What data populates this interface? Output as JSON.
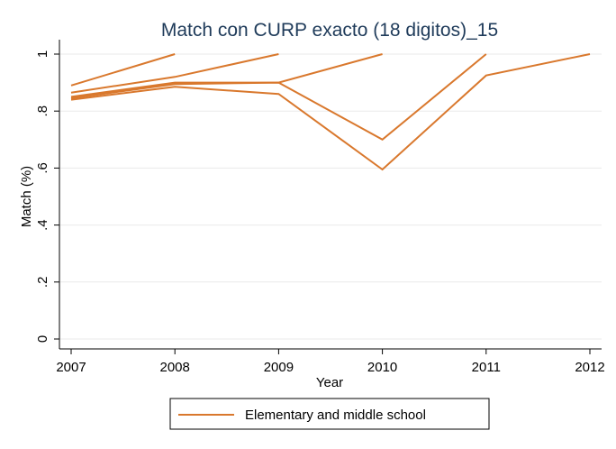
{
  "chart_data": {
    "type": "line",
    "title": "Match con CURP exacto (18 digitos)_15",
    "xlabel": "Year",
    "ylabel": "Match (%)",
    "x_ticks": [
      "2007",
      "2008",
      "2009",
      "2010",
      "2011",
      "2012"
    ],
    "y_ticks": [
      "0",
      ".2",
      ".4",
      ".6",
      ".8",
      "1"
    ],
    "xlim": [
      2007,
      2012
    ],
    "ylim": [
      0,
      1
    ],
    "grid": true,
    "legend_position": "bottom",
    "legend": [
      "Elementary and middle school"
    ],
    "series": [
      {
        "name": "Elementary and middle school",
        "x": [
          2007,
          2008
        ],
        "y": [
          0.89,
          1.0
        ]
      },
      {
        "x": [
          2007,
          2008,
          2009
        ],
        "y": [
          0.865,
          0.92,
          1.0
        ]
      },
      {
        "x": [
          2007,
          2008,
          2009,
          2010
        ],
        "y": [
          0.85,
          0.9,
          0.9,
          1.0
        ]
      },
      {
        "x": [
          2007,
          2008,
          2009,
          2010,
          2011
        ],
        "y": [
          0.845,
          0.895,
          0.9,
          0.7,
          1.0
        ]
      },
      {
        "x": [
          2007,
          2008,
          2009,
          2010,
          2011,
          2012
        ],
        "y": [
          0.84,
          0.885,
          0.86,
          0.595,
          0.925,
          1.0
        ]
      }
    ],
    "colors": {
      "line": "#d9782d",
      "title": "#1f3b5a",
      "grid": "#eaeaea",
      "axis": "#000000"
    }
  }
}
